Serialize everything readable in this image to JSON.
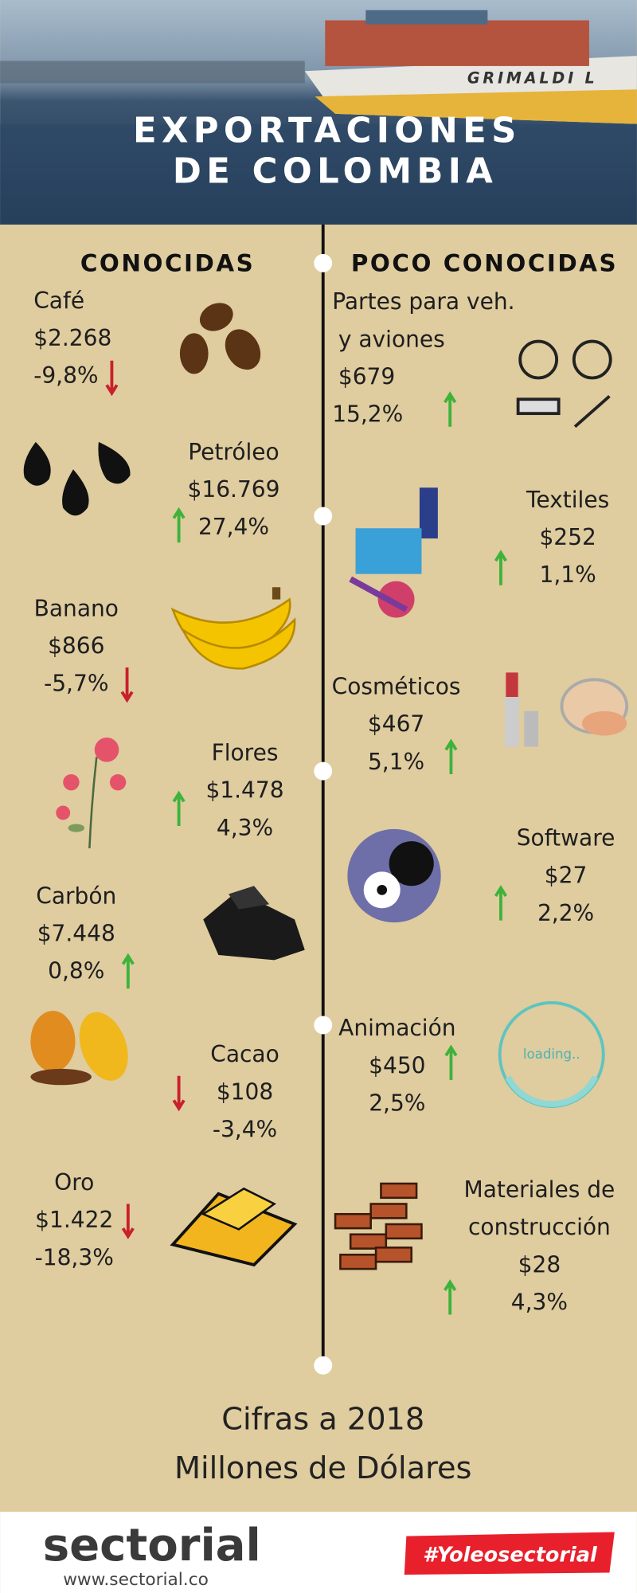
{
  "header": {
    "title_lines": [
      "EXPORTACIONES",
      "DE COLOMBIA"
    ]
  },
  "left": {
    "heading": "CONOCIDAS",
    "items": [
      {
        "name": [
          "Café"
        ],
        "value": "$2.268",
        "change": "-9,8%",
        "direction": "down"
      },
      {
        "name": [
          "Petróleo"
        ],
        "value": "$16.769",
        "change": "27,4%",
        "direction": "up"
      },
      {
        "name": [
          "Banano"
        ],
        "value": "$866",
        "change": "-5,7%",
        "direction": "down"
      },
      {
        "name": [
          "Flores"
        ],
        "value": "$1.478",
        "change": "4,3%",
        "direction": "up"
      },
      {
        "name": [
          "Carbón"
        ],
        "value": "$7.448",
        "change": "0,8%",
        "direction": "up"
      },
      {
        "name": [
          "Cacao"
        ],
        "value": "$108",
        "change": "-3,4%",
        "direction": "down"
      },
      {
        "name": [
          "Oro"
        ],
        "value": "$1.422",
        "change": "-18,3%",
        "direction": "down"
      }
    ]
  },
  "right": {
    "heading": "POCO CONOCIDAS",
    "items": [
      {
        "name": [
          "Partes para veh.",
          "y aviones"
        ],
        "value": "$679",
        "change": "15,2%",
        "direction": "up"
      },
      {
        "name": [
          "Textiles"
        ],
        "value": "$252",
        "change": "1,1%",
        "direction": "up"
      },
      {
        "name": [
          "Cosméticos"
        ],
        "value": "$467",
        "change": "5,1%",
        "direction": "up"
      },
      {
        "name": [
          "Software"
        ],
        "value": "$27",
        "change": "2,2%",
        "direction": "up"
      },
      {
        "name": [
          "Animación"
        ],
        "value": "$450",
        "change": "2,5%",
        "direction": "up",
        "icon_text": "loading.."
      },
      {
        "name": [
          "Materiales de",
          "construcción"
        ],
        "value": "$28",
        "change": "4,3%",
        "direction": "up"
      }
    ]
  },
  "footer": {
    "note_lines": [
      "Cifras a 2018",
      "Millones de Dólares"
    ],
    "logo": "sectorial",
    "url": "www.sectorial.co",
    "hashtag": "#Yoleosectorial"
  }
}
